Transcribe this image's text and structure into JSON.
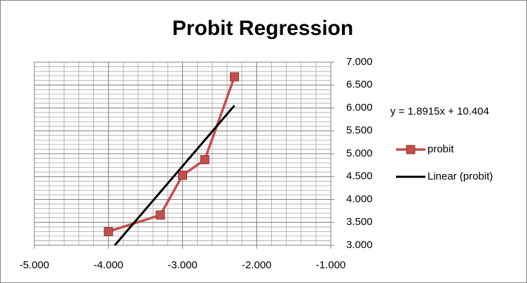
{
  "chart_data": {
    "type": "line",
    "title": "Probit Regression",
    "x": [
      -4.0,
      -3.3,
      -3.0,
      -2.7,
      -2.3
    ],
    "series": [
      {
        "name": "probit",
        "color": "#c0504d",
        "values": [
          3.3,
          3.66,
          4.53,
          4.87,
          6.68
        ]
      }
    ],
    "trendline": {
      "name": "Linear (probit)",
      "color": "#000000",
      "equation": "y = 1.8915x + 10.404",
      "slope": 1.8915,
      "intercept": 10.404
    },
    "xlim": [
      -5,
      -1
    ],
    "ylim": [
      3,
      7
    ],
    "xticks": [
      {
        "value": -5,
        "label": "-5.000"
      },
      {
        "value": -4,
        "label": "-4.000"
      },
      {
        "value": -3,
        "label": "-3.000"
      },
      {
        "value": -2,
        "label": "-2.000"
      },
      {
        "value": -1,
        "label": "-1.000"
      }
    ],
    "yticks": [
      {
        "value": 3,
        "label": "3.000"
      },
      {
        "value": 3.5,
        "label": "3.500"
      },
      {
        "value": 4,
        "label": "4.000"
      },
      {
        "value": 4.5,
        "label": "4.500"
      },
      {
        "value": 5,
        "label": "5.000"
      },
      {
        "value": 5.5,
        "label": "5.500"
      },
      {
        "value": 6,
        "label": "6.000"
      },
      {
        "value": 6.5,
        "label": "6.500"
      },
      {
        "value": 7,
        "label": "7.000"
      }
    ],
    "grid": true,
    "x_minor_step": 0.2,
    "y_minor_step": 0.1,
    "legend": "right"
  }
}
